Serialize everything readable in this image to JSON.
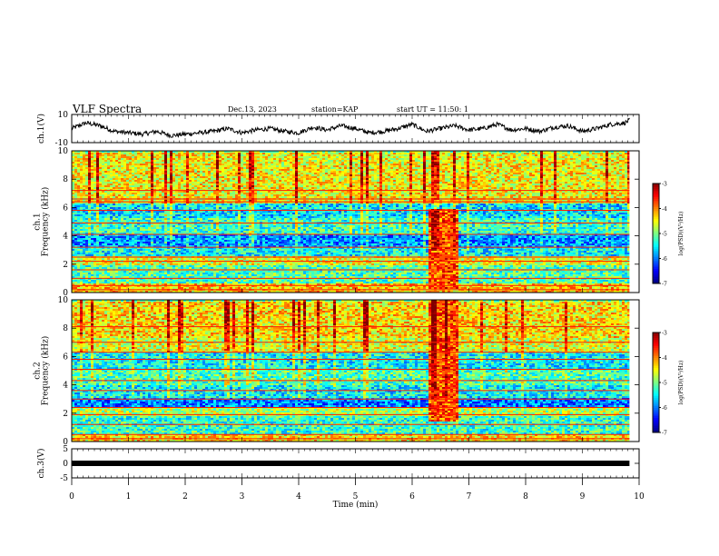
{
  "header": {
    "title": "VLF Spectra",
    "date": "Dec.13, 2023",
    "station": "station=KAP",
    "start": "start UT =  11:50: 1"
  },
  "chart_data": [
    {
      "type": "line",
      "name": "ch1-waveform",
      "ylabel": "ch.1(V)",
      "ylim": [
        -10,
        10
      ],
      "yticks": [
        10,
        -10
      ],
      "xlim": [
        0,
        10
      ],
      "x": [
        0.0,
        0.25,
        0.5,
        0.75,
        1.0,
        1.25,
        1.5,
        1.75,
        2.0,
        2.25,
        2.5,
        2.75,
        3.0,
        3.25,
        3.5,
        3.75,
        4.0,
        4.25,
        4.5,
        4.75,
        5.0,
        5.25,
        5.5,
        5.75,
        6.0,
        6.25,
        6.5,
        6.75,
        7.0,
        7.25,
        7.5,
        7.75,
        8.0,
        8.25,
        8.5,
        8.75,
        9.0,
        9.25,
        9.5,
        9.75,
        9.83
      ],
      "values": [
        0,
        4,
        2,
        -2,
        -3,
        -4,
        -2,
        -5,
        -4,
        -3,
        -2,
        0,
        -3,
        -1,
        0,
        -2,
        -3,
        1,
        -1,
        2,
        0,
        -3,
        -2,
        0,
        3,
        -2,
        0,
        2,
        -1,
        0,
        3,
        -1,
        0,
        -2,
        1,
        2,
        -2,
        0,
        3,
        4,
        6
      ]
    },
    {
      "type": "heatmap",
      "name": "ch1-spectrogram",
      "ylabel": "ch.1\nFrequency (kHz)",
      "ylim": [
        0,
        10
      ],
      "yticks": [
        0,
        2,
        4,
        6,
        8,
        10
      ],
      "xlim": [
        0,
        10
      ],
      "data_xmax": 9.83,
      "colorbar": {
        "label": "log(PSD)(V²/Hz)",
        "range": [
          -7,
          -3
        ],
        "ticks": [
          -3,
          -4,
          -5,
          -6,
          -7
        ]
      },
      "bands": [
        {
          "f": [
            0.0,
            0.7
          ],
          "level": -4.3
        },
        {
          "f": [
            0.7,
            2.0
          ],
          "level": -5.2
        },
        {
          "f": [
            2.0,
            2.6
          ],
          "level": -4.6
        },
        {
          "f": [
            2.6,
            3.3
          ],
          "level": -5.5
        },
        {
          "f": [
            3.3,
            4.2
          ],
          "level": -5.9
        },
        {
          "f": [
            4.2,
            5.3
          ],
          "level": -5.3
        },
        {
          "f": [
            5.3,
            6.3
          ],
          "level": -5.6
        },
        {
          "f": [
            6.3,
            7.1
          ],
          "level": -4.5
        },
        {
          "f": [
            7.1,
            10.0
          ],
          "level": -4.5
        }
      ],
      "lines_khz": [
        0.2,
        0.5,
        1.0,
        1.6,
        2.2,
        2.5,
        3.2,
        4.1,
        4.9,
        5.8,
        6.4,
        6.6,
        7.2
      ],
      "event": {
        "t": [
          6.25,
          6.78
        ],
        "f": [
          0.3,
          6.0
        ],
        "level": -3.8
      }
    },
    {
      "type": "heatmap",
      "name": "ch2-spectrogram",
      "ylabel": "ch.2\nFrequency (kHz)",
      "ylim": [
        0,
        10
      ],
      "yticks": [
        0,
        2,
        4,
        6,
        8,
        10
      ],
      "xlim": [
        0,
        10
      ],
      "data_xmax": 9.83,
      "colorbar": {
        "label": "log(PSD)(V²/Hz)",
        "range": [
          -7,
          -3
        ],
        "ticks": [
          -3,
          -4,
          -5,
          -6,
          -7
        ]
      },
      "bands": [
        {
          "f": [
            0.0,
            0.6
          ],
          "level": -4.4
        },
        {
          "f": [
            0.6,
            1.8
          ],
          "level": -5.3
        },
        {
          "f": [
            1.8,
            2.5
          ],
          "level": -4.8
        },
        {
          "f": [
            2.5,
            3.2
          ],
          "level": -6.0
        },
        {
          "f": [
            3.2,
            4.0
          ],
          "level": -5.5
        },
        {
          "f": [
            4.0,
            5.2
          ],
          "level": -5.2
        },
        {
          "f": [
            5.2,
            6.4
          ],
          "level": -5.5
        },
        {
          "f": [
            6.4,
            7.4
          ],
          "level": -4.6
        },
        {
          "f": [
            7.4,
            10.0
          ],
          "level": -4.4
        }
      ],
      "lines_khz": [
        0.2,
        0.5,
        1.2,
        1.9,
        2.4,
        3.0,
        3.6,
        4.3,
        5.1,
        5.8,
        6.3,
        7.0,
        8.1
      ],
      "event": {
        "t": [
          6.25,
          6.78
        ],
        "f": [
          1.5,
          10.0
        ],
        "level": -3.8
      }
    },
    {
      "type": "line",
      "name": "ch3-waveform",
      "ylabel": "ch.3(V)",
      "ylim": [
        -5,
        5
      ],
      "yticks": [
        5,
        0,
        -5
      ],
      "xlim": [
        0,
        10
      ],
      "xlabel": "Time (min)",
      "xticks": [
        0,
        1,
        2,
        3,
        4,
        5,
        6,
        7,
        8,
        9,
        10
      ],
      "x": [
        0.0,
        9.83
      ],
      "values": [
        0,
        0
      ]
    }
  ]
}
